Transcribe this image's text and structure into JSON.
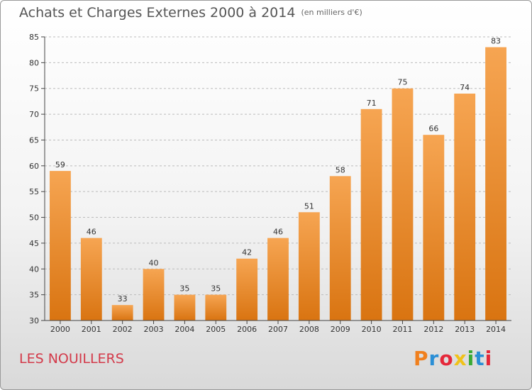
{
  "header": {
    "title": "Achats et Charges Externes 2000 à 2014",
    "unit": "(en milliers d'€)"
  },
  "footer": {
    "commune": "LES NOUILLERS",
    "logo_text": "Proxiti",
    "logo_colors": [
      "#f0801e",
      "#2b8fd6",
      "#e5283a",
      "#f0c21a",
      "#3aaa35",
      "#2b8fd6",
      "#e5283a"
    ]
  },
  "colors": {
    "bar_top": "#f6a552",
    "bar_bottom": "#d97411",
    "grid": "#bbbbbb",
    "axis": "#444444"
  },
  "chart_data": {
    "type": "bar",
    "title": "Achats et Charges Externes 2000 à 2014",
    "subtitle": "(en milliers d'€)",
    "xlabel": "",
    "ylabel": "",
    "categories": [
      "2000",
      "2001",
      "2002",
      "2003",
      "2004",
      "2005",
      "2006",
      "2007",
      "2008",
      "2009",
      "2010",
      "2011",
      "2012",
      "2013",
      "2014"
    ],
    "values": [
      59,
      46,
      33,
      40,
      35,
      35,
      42,
      46,
      51,
      58,
      71,
      75,
      66,
      74,
      83
    ],
    "ylim": [
      30,
      85
    ],
    "yticks": [
      30,
      35,
      40,
      45,
      50,
      55,
      60,
      65,
      70,
      75,
      80,
      85
    ],
    "grid": true,
    "grid_axis": "y",
    "legend": "none"
  }
}
